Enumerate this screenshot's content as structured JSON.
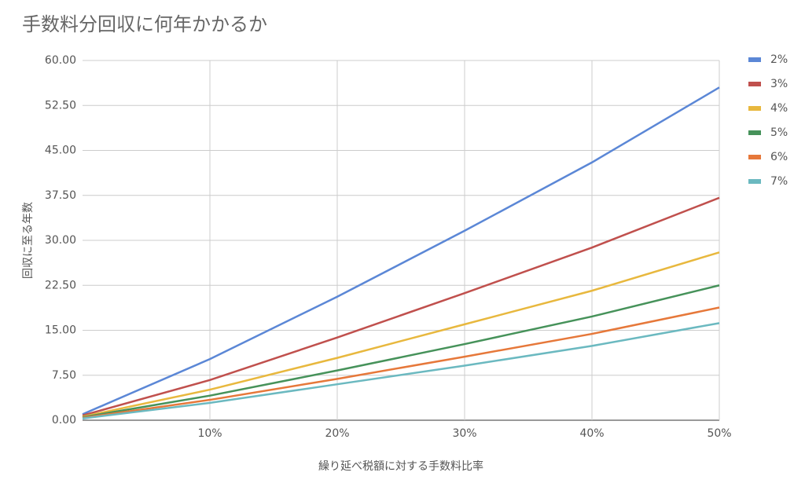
{
  "chart_data": {
    "type": "line",
    "title": "手数料分回収に何年かかるか",
    "x_label": "繰り延べ税額に対する手数料比率",
    "y_label": "回収に至る年数",
    "x": [
      0,
      10,
      20,
      30,
      40,
      50
    ],
    "xlim": [
      0,
      50
    ],
    "xticks": [
      {
        "value": 10,
        "label": "10%"
      },
      {
        "value": 20,
        "label": "20%"
      },
      {
        "value": 30,
        "label": "30%"
      },
      {
        "value": 40,
        "label": "40%"
      },
      {
        "value": 50,
        "label": "50%"
      }
    ],
    "ylim": [
      0,
      60
    ],
    "yticks": [
      {
        "value": 0,
        "label": "0.00"
      },
      {
        "value": 7.5,
        "label": "7.50"
      },
      {
        "value": 15,
        "label": "15.00"
      },
      {
        "value": 22.5,
        "label": "22.50"
      },
      {
        "value": 30,
        "label": "30.00"
      },
      {
        "value": 37.5,
        "label": "37.50"
      },
      {
        "value": 45,
        "label": "45.00"
      },
      {
        "value": 52.5,
        "label": "52.50"
      },
      {
        "value": 60,
        "label": "60.00"
      }
    ],
    "grid": true,
    "legend": "right",
    "series": [
      {
        "name": "2%",
        "color": "#5b87d6",
        "values": [
          1.0,
          10.2,
          20.6,
          31.6,
          43.0,
          55.5
        ]
      },
      {
        "name": "3%",
        "color": "#c0504d",
        "values": [
          0.8,
          6.7,
          13.8,
          21.2,
          28.8,
          37.1
        ]
      },
      {
        "name": "4%",
        "color": "#e8b83e",
        "values": [
          0.6,
          5.1,
          10.4,
          16.0,
          21.6,
          28.0
        ]
      },
      {
        "name": "5%",
        "color": "#46925a",
        "values": [
          0.5,
          4.1,
          8.3,
          12.7,
          17.3,
          22.5
        ]
      },
      {
        "name": "6%",
        "color": "#e6783a",
        "values": [
          0.4,
          3.4,
          6.9,
          10.6,
          14.4,
          18.8
        ]
      },
      {
        "name": "7%",
        "color": "#6bb9c0",
        "values": [
          0.3,
          2.9,
          6.0,
          9.1,
          12.4,
          16.2
        ]
      }
    ]
  }
}
